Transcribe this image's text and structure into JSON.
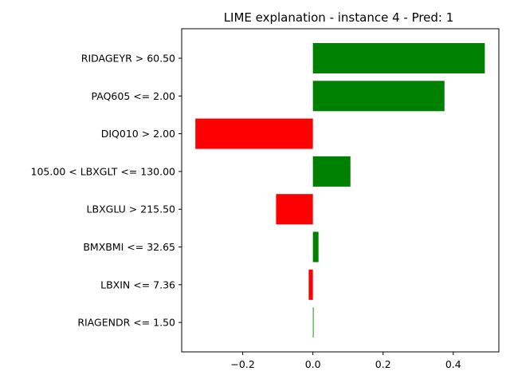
{
  "chart_data": {
    "type": "bar",
    "orientation": "horizontal",
    "title": "LIME explanation - instance 4 - Pred: 1",
    "xlabel": "",
    "ylabel": "",
    "categories": [
      "RIDAGEYR > 60.50",
      "PAQ605 <= 2.00",
      "DIQ010 > 2.00",
      "105.00 < LBXGLT <= 130.00",
      "LBXGLU > 215.50",
      "BMXBMI <= 32.65",
      "LBXIN <= 7.36",
      "RIAGENDR <= 1.50"
    ],
    "values": [
      0.49,
      0.375,
      -0.335,
      0.107,
      -0.105,
      0.016,
      -0.012,
      0.002
    ],
    "xlim": [
      -0.374,
      0.53
    ],
    "xticks": [
      -0.2,
      0.0,
      0.2,
      0.4
    ],
    "xtick_labels": [
      "−0.2",
      "0.0",
      "0.2",
      "0.4"
    ],
    "colors": {
      "positive": "#008000",
      "negative": "#ff0000"
    },
    "grid": false
  }
}
